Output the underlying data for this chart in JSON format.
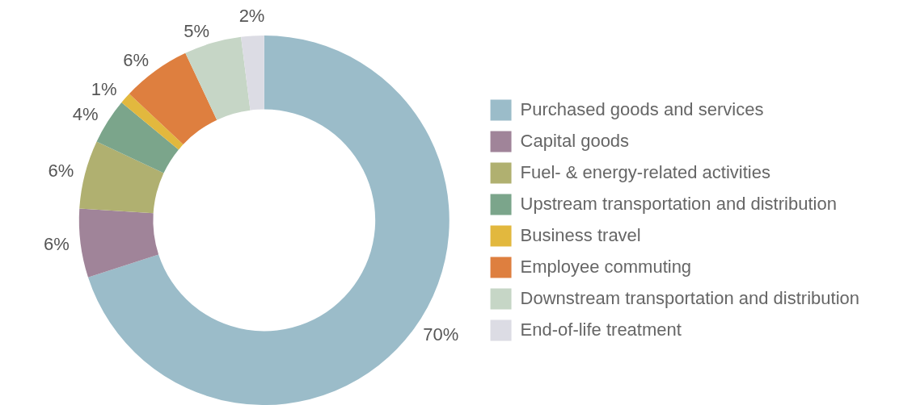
{
  "chart_data": {
    "type": "donut",
    "categories": [
      "Purchased goods and services",
      "Capital goods",
      "Fuel- & energy-related activities",
      "Upstream transportation and distribution",
      "Business travel",
      "Employee commuting",
      "Downstream transportation and distribution",
      "End-of-life treatment"
    ],
    "values": [
      70,
      6,
      6,
      4,
      1,
      6,
      5,
      2
    ],
    "value_labels": [
      "70%",
      "6%",
      "6%",
      "4%",
      "1%",
      "6%",
      "5%",
      "2%"
    ],
    "colors": [
      "#9bbcc9",
      "#a08499",
      "#b0b070",
      "#7ba58b",
      "#e2b83e",
      "#de7f3f",
      "#c6d6c6",
      "#dcdce4"
    ],
    "legend": "right"
  }
}
